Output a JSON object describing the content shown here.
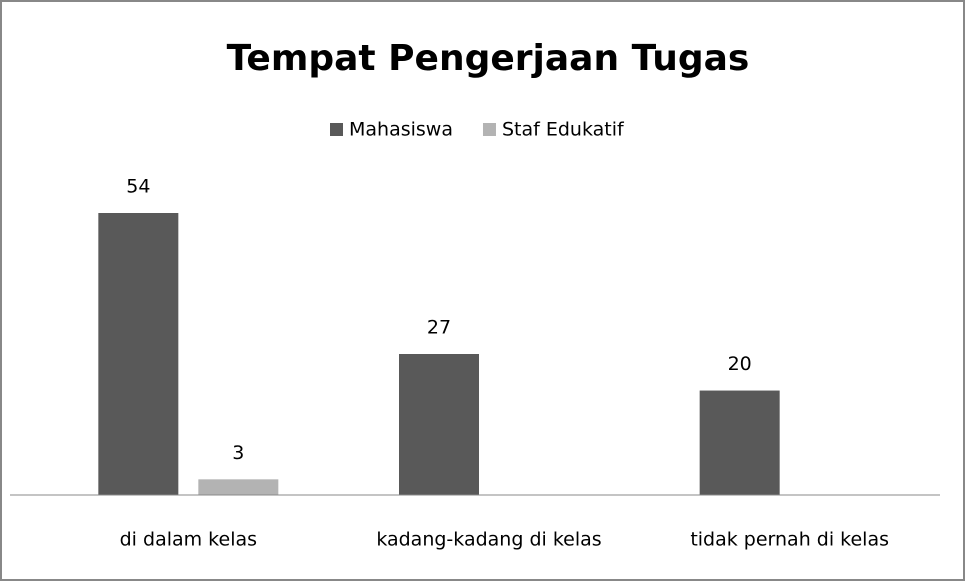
{
  "chart_data": {
    "type": "bar",
    "title": "Tempat Pengerjaan Tugas",
    "categories": [
      "di dalam kelas",
      "kadang-kadang di kelas",
      "tidak pernah di kelas"
    ],
    "series": [
      {
        "name": "Mahasiswa",
        "color": "#595959",
        "values": [
          54,
          27,
          20
        ]
      },
      {
        "name": "Staf Edukatif",
        "color": "#b3b3b3",
        "values": [
          3,
          null,
          null
        ]
      }
    ],
    "legend": "top"
  }
}
